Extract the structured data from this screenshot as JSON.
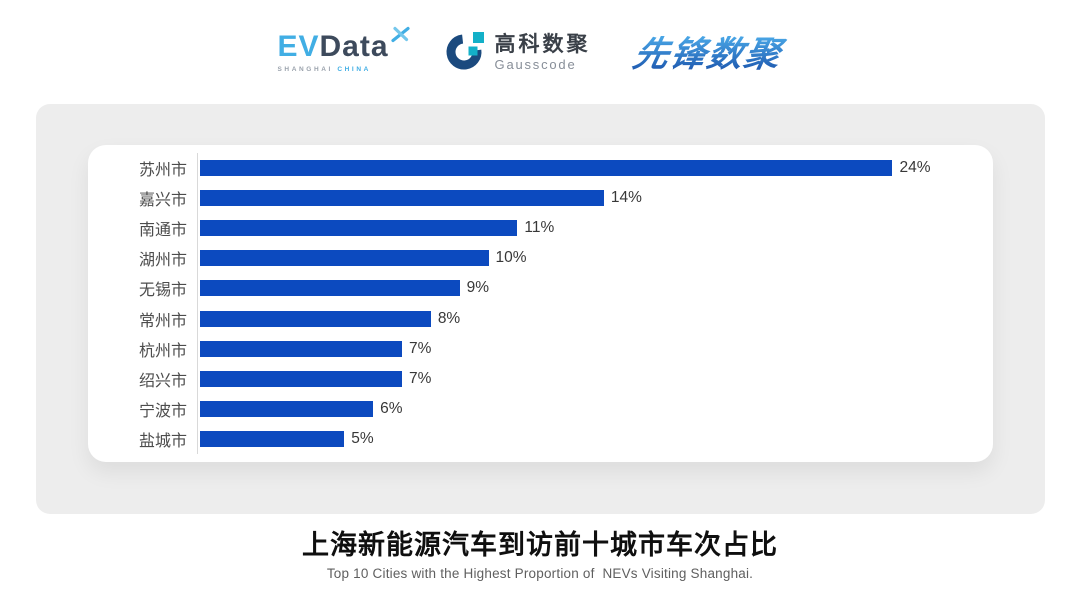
{
  "header": {
    "evdata": {
      "ev": "EV",
      "data": "Data",
      "sub_left": "SHANGHAI",
      "sub_right": "CHINA"
    },
    "gausscode": {
      "cn": "高科数聚",
      "en": "Gausscode"
    },
    "xianfeng": "先锋数聚"
  },
  "chart_data": {
    "type": "bar",
    "orientation": "horizontal",
    "title": "上海新能源汽车到访前十城市车次占比",
    "subtitle": "Top 10 Cities with the Highest Proportion of  NEVs Visiting Shanghai.",
    "categories": [
      "苏州市",
      "嘉兴市",
      "南通市",
      "湖州市",
      "无锡市",
      "常州市",
      "杭州市",
      "绍兴市",
      "宁波市",
      "盐城市"
    ],
    "values": [
      24,
      14,
      11,
      10,
      9,
      8,
      7,
      7,
      6,
      5
    ],
    "value_labels": [
      "24%",
      "14%",
      "11%",
      "10%",
      "9%",
      "8%",
      "7%",
      "7%",
      "6%",
      "5%"
    ],
    "xlim": [
      0,
      27
    ],
    "unit": "%",
    "grid": false,
    "legend": false,
    "bar_color": "#0C4ABF",
    "axis_color": "#D9D9D9"
  },
  "colors": {
    "bar_blue": "#0C4ABF",
    "evdata_blue": "#41AEE4",
    "evdata_dark": "#3D4A5C",
    "gauss_navy": "#1B4A7E",
    "gauss_teal": "#13B0C8",
    "xianfeng_gradient_top": "#4BA9E8",
    "xianfeng_gradient_bottom": "#1A52AB",
    "panel_bg": "#EDEDED"
  }
}
